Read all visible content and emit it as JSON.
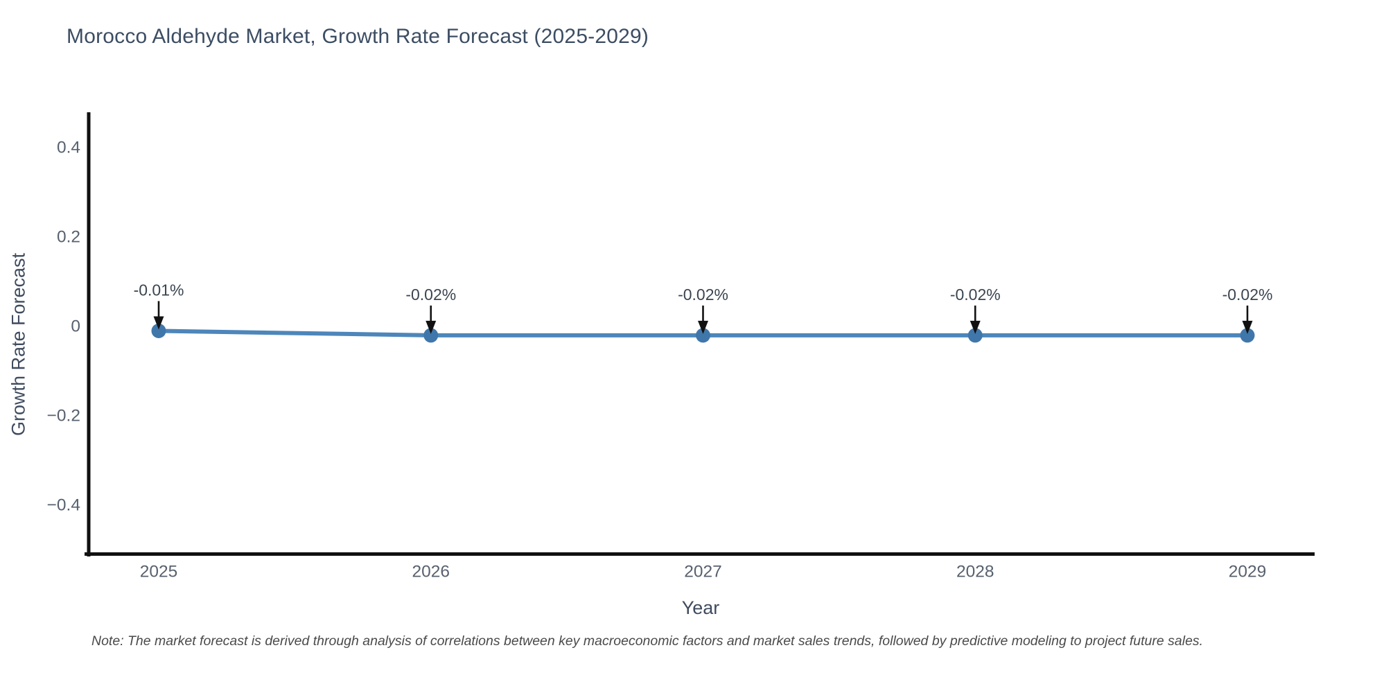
{
  "chart_data": {
    "type": "line",
    "title": "Morocco Aldehyde Market, Growth Rate Forecast (2025-2029)",
    "xlabel": "Year",
    "ylabel": "Growth Rate Forecast",
    "x": [
      2025,
      2026,
      2027,
      2028,
      2029
    ],
    "x_ticks": [
      "2025",
      "2026",
      "2027",
      "2028",
      "2029"
    ],
    "series": [
      {
        "name": "Growth Rate Forecast",
        "values": [
          -0.01,
          -0.02,
          -0.02,
          -0.02,
          -0.02
        ],
        "point_labels": [
          "-0.01%",
          "-0.02%",
          "-0.02%",
          "-0.02%",
          "-0.02%"
        ]
      }
    ],
    "y_ticks": [
      {
        "v": 0.4,
        "label": "0.4"
      },
      {
        "v": 0.2,
        "label": "0.2"
      },
      {
        "v": 0,
        "label": "0"
      },
      {
        "v": -0.2,
        "label": "−0.2"
      },
      {
        "v": -0.4,
        "label": "−0.4"
      }
    ],
    "ylim": [
      -0.51,
      0.48
    ],
    "grid": false,
    "legend": false,
    "line_color": "#4d86ba",
    "marker_color": "#4077aa",
    "arrow_color": "#111111",
    "axis_line_color": "#111111",
    "note": "Note: The market forecast is derived through analysis of correlations between key macroeconomic factors and market sales trends, followed by predictive modeling to project future sales."
  }
}
